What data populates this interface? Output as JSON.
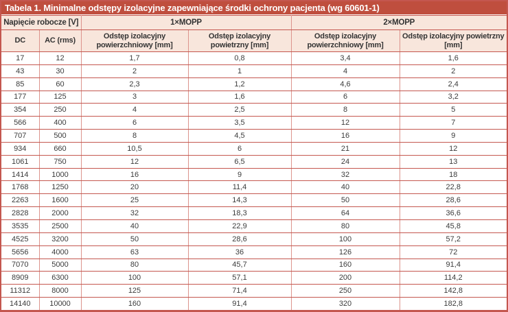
{
  "title": "Tabela 1. Minimalne odstępy izolacyjne zapewniające środki ochrony pacjenta (wg 60601-1)",
  "table": {
    "group_headers": {
      "voltage": "Napięcie robocze [V]",
      "mopp1": "1×MOPP",
      "mopp2": "2×MOPP"
    },
    "column_headers": {
      "dc": "DC",
      "ac": "AC (rms)",
      "creepage": "Odstęp izolacyjny powierzchniowy [mm]",
      "clearance": "Odstęp izolacyjny powietrzny [mm]"
    },
    "rows": [
      [
        "17",
        "12",
        "1,7",
        "0,8",
        "3,4",
        "1,6"
      ],
      [
        "43",
        "30",
        "2",
        "1",
        "4",
        "2"
      ],
      [
        "85",
        "60",
        "2,3",
        "1,2",
        "4,6",
        "2,4"
      ],
      [
        "177",
        "125",
        "3",
        "1,6",
        "6",
        "3,2"
      ],
      [
        "354",
        "250",
        "4",
        "2,5",
        "8",
        "5"
      ],
      [
        "566",
        "400",
        "6",
        "3,5",
        "12",
        "7"
      ],
      [
        "707",
        "500",
        "8",
        "4,5",
        "16",
        "9"
      ],
      [
        "934",
        "660",
        "10,5",
        "6",
        "21",
        "12"
      ],
      [
        "1061",
        "750",
        "12",
        "6,5",
        "24",
        "13"
      ],
      [
        "1414",
        "1000",
        "16",
        "9",
        "32",
        "18"
      ],
      [
        "1768",
        "1250",
        "20",
        "11,4",
        "40",
        "22,8"
      ],
      [
        "2263",
        "1600",
        "25",
        "14,3",
        "50",
        "28,6"
      ],
      [
        "2828",
        "2000",
        "32",
        "18,3",
        "64",
        "36,6"
      ],
      [
        "3535",
        "2500",
        "40",
        "22,9",
        "80",
        "45,8"
      ],
      [
        "4525",
        "3200",
        "50",
        "28,6",
        "100",
        "57,2"
      ],
      [
        "5656",
        "4000",
        "63",
        "36",
        "126",
        "72"
      ],
      [
        "7070",
        "5000",
        "80",
        "45,7",
        "160",
        "91,4"
      ],
      [
        "8909",
        "6300",
        "100",
        "57,1",
        "200",
        "114,2"
      ],
      [
        "11312",
        "8000",
        "125",
        "71,4",
        "250",
        "142,8"
      ],
      [
        "14140",
        "10000",
        "160",
        "91,4",
        "320",
        "182,8"
      ]
    ]
  },
  "colors": {
    "title_bar_bg": "#bf4e3e",
    "title_text": "#ffffff",
    "header_bg": "#f8e6dc",
    "row_bg": "#ffffff",
    "border_strong": "#c4574f",
    "border_light": "#dc938c",
    "body_text": "#3b3b3b"
  }
}
